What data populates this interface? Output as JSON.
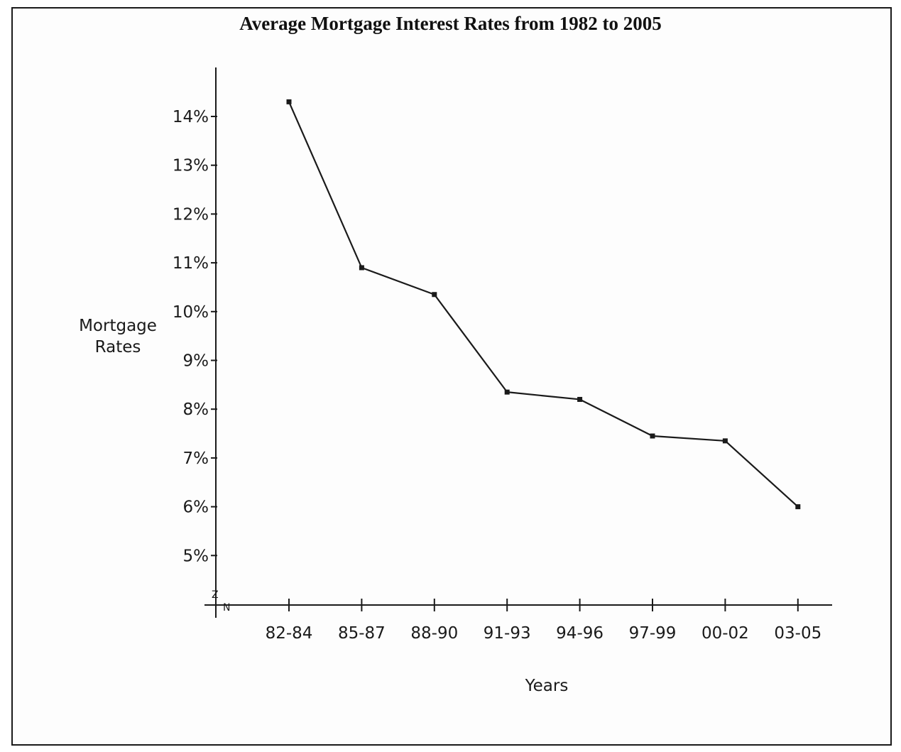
{
  "chart_data": {
    "type": "line",
    "title": "Average Mortgage Interest Rates from 1982 to 2005",
    "xlabel": "Years",
    "ylabel_lines": [
      "Mortgage",
      "Rates"
    ],
    "categories": [
      "82-84",
      "85-87",
      "88-90",
      "91-93",
      "94-96",
      "97-99",
      "00-02",
      "03-05"
    ],
    "series": [
      {
        "values": [
          14.3,
          10.9,
          10.35,
          8.35,
          8.2,
          7.45,
          7.35,
          6.0
        ]
      }
    ],
    "y_ticks": [
      5,
      6,
      7,
      8,
      9,
      10,
      11,
      12,
      13,
      14
    ],
    "y_tick_labels": [
      "5%",
      "6%",
      "7%",
      "8%",
      "9%",
      "10%",
      "11%",
      "12%",
      "13%",
      "14%"
    ],
    "axis_break_marks": [
      "Z",
      "N"
    ],
    "grid": false,
    "legend": "none",
    "line_color": "#1a1a1a"
  }
}
